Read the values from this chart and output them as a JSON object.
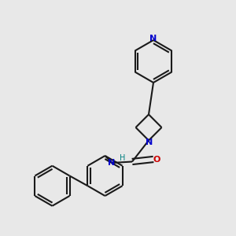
{
  "background_color": "#e8e8e8",
  "bond_color": "#1a1a1a",
  "N_color": "#0000cc",
  "O_color": "#cc0000",
  "H_color": "#008080",
  "line_width": 1.5,
  "dbo": 0.12,
  "figsize": [
    3.0,
    3.0
  ],
  "dpi": 100,
  "xlim": [
    0,
    10
  ],
  "ylim": [
    0,
    10
  ]
}
